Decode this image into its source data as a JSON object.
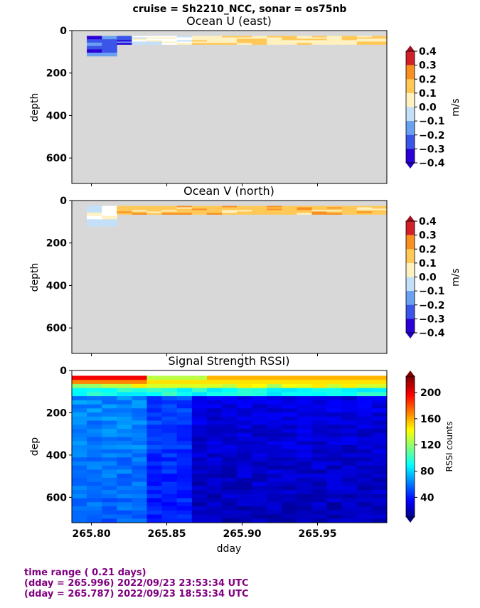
{
  "suptitle": "cruise = Sh2210_NCC,  sonar = os75nb",
  "footer": {
    "line1": "time range ( 0.21 days)",
    "line2": "(dday = 265.996) 2022/09/23 23:53:34 UTC",
    "line3": "(dday = 265.787) 2022/09/23 18:53:34 UTC"
  },
  "chart_data": [
    {
      "type": "heatmap",
      "title": "Ocean U (east)",
      "ylabel": "depth",
      "xlabel": "",
      "xlim": [
        265.787,
        265.996
      ],
      "ylim": [
        720,
        0
      ],
      "yticks": [
        0,
        200,
        400,
        600
      ],
      "colorbar": {
        "label": "m/s",
        "ticks": [
          "0.4",
          "0.3",
          "0.2",
          "0.1",
          "0.0",
          "−0.1",
          "−0.2",
          "−0.3",
          "−0.4"
        ],
        "range": [
          -0.4,
          0.4
        ]
      },
      "data_depth_top": 25,
      "max_depth": 120,
      "nodata_color": "#d8d8d8"
    },
    {
      "type": "heatmap",
      "title": "Ocean V (north)",
      "ylabel": "depth",
      "xlabel": "",
      "xlim": [
        265.787,
        265.996
      ],
      "ylim": [
        720,
        0
      ],
      "yticks": [
        0,
        200,
        400,
        600
      ],
      "colorbar": {
        "label": "m/s",
        "ticks": [
          "0.4",
          "0.3",
          "0.2",
          "0.1",
          "0.0",
          "−0.1",
          "−0.2",
          "−0.3",
          "−0.4"
        ],
        "range": [
          -0.4,
          0.4
        ]
      },
      "data_depth_top": 25,
      "max_depth": 120,
      "nodata_color": "#d8d8d8"
    },
    {
      "type": "heatmap",
      "title": "Signal Strength RSSI)",
      "ylabel": "dep",
      "xlabel": "dday",
      "xlim": [
        265.787,
        265.996
      ],
      "ylim": [
        720,
        0
      ],
      "yticks": [
        0,
        200,
        400,
        600
      ],
      "xticks": [
        "265.80",
        "265.85",
        "265.90",
        "265.95"
      ],
      "xtick_values": [
        265.8,
        265.85,
        265.9,
        265.95
      ],
      "colorbar": {
        "label": "RSSI counts",
        "ticks": [
          "200",
          "160",
          "120",
          "80",
          "40"
        ],
        "range": [
          10,
          225
        ]
      },
      "data_depth_top": 25
    }
  ]
}
